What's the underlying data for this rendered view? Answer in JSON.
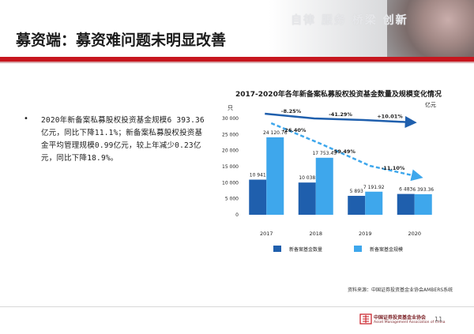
{
  "header": {
    "slogan": "自律 服务 桥梁 创新",
    "title": "募资端：募资难问题未明显改善"
  },
  "bullet": {
    "text": "2020年新备案私募股权投资基金规模6 393.36亿元，同比下降11.1%；新备案私募股权投资基金平均管理规模0.99亿元，较上年减少0.23亿元，同比下降18.9%。"
  },
  "chart_data": {
    "type": "bar",
    "title": "2017-2020年各年新备案私募股权投资基金数量及规模变化情况",
    "left_unit": "只",
    "right_unit": "亿元",
    "categories": [
      "2017",
      "2018",
      "2019",
      "2020"
    ],
    "ylim": [
      0,
      30000
    ],
    "y_ticks": [
      "0",
      "5 000",
      "10 000",
      "15 000",
      "20 000",
      "25 000",
      "30 000"
    ],
    "series": [
      {
        "name": "新备案基金数量",
        "color": "#1f5fad",
        "values": [
          10941,
          10038,
          5893,
          6483
        ],
        "labels": [
          "10 941",
          "10 038",
          "5 893",
          "6 483"
        ]
      },
      {
        "name": "新备案基金规模",
        "color": "#3ea7ec",
        "values": [
          24120.76,
          17753.43,
          7191.92,
          6393.36
        ],
        "labels": [
          "24 120.76",
          "17 753.43",
          "7 191.92",
          "6 393.36"
        ]
      }
    ],
    "count_trend": [
      "-8.25%",
      "-41.29%",
      "+10.01%"
    ],
    "scale_trend": [
      "-26.40%",
      "-59.49%",
      "-11.10%"
    ]
  },
  "source": "资料来源：中国证券投资基金业协会AMBERS系统",
  "footer": {
    "org_cn": "中国证券投资基金业协会",
    "org_en": "Asset Management Association of China",
    "page": "11"
  }
}
